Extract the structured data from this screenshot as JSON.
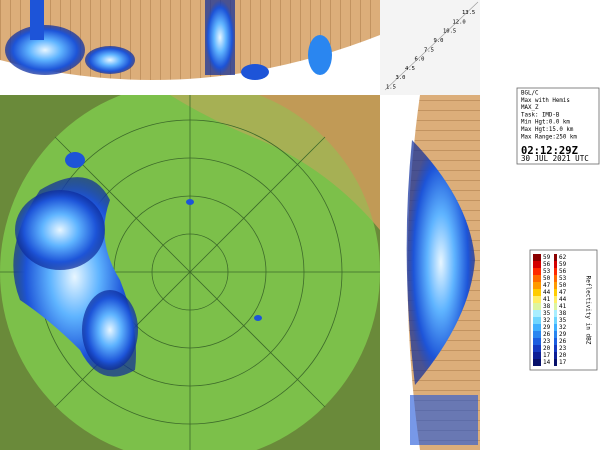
{
  "info": {
    "lines": [
      "BGL/C",
      "Max with Hemis",
      "MAX_Z",
      "Task: IMD-B",
      "Min Hgt:0.0 km",
      "Max Hgt:15.0 km",
      "Max Range:250 km"
    ],
    "time": "02:12:29Z",
    "date": "30 JUL 2021 UTC"
  },
  "height_scale": [
    "1.5",
    "3.0",
    "4.5",
    "6.0",
    "7.5",
    "9.0",
    "10.5",
    "12.0",
    "13.5"
  ],
  "legend": {
    "title": "Reflectivity in dBZ",
    "entries": [
      {
        "low": 59,
        "high": 62,
        "color": "#8b0000"
      },
      {
        "low": 56,
        "high": 59,
        "color": "#d40000"
      },
      {
        "low": 53,
        "high": 56,
        "color": "#ff2a00"
      },
      {
        "low": 50,
        "high": 53,
        "color": "#ff6a00"
      },
      {
        "low": 47,
        "high": 50,
        "color": "#ff9a00"
      },
      {
        "low": 44,
        "high": 47,
        "color": "#ffcc00"
      },
      {
        "low": 41,
        "high": 44,
        "color": "#ffee66"
      },
      {
        "low": 38,
        "high": 41,
        "color": "#ddf5a0"
      },
      {
        "low": 35,
        "high": 38,
        "color": "#a8eeff"
      },
      {
        "low": 32,
        "high": 35,
        "color": "#6fd6ff"
      },
      {
        "low": 29,
        "high": 32,
        "color": "#3fb0ff"
      },
      {
        "low": 26,
        "high": 29,
        "color": "#2a86f0"
      },
      {
        "low": 23,
        "high": 26,
        "color": "#1c5ee0"
      },
      {
        "low": 20,
        "high": 23,
        "color": "#1439c0"
      },
      {
        "low": 17,
        "high": 20,
        "color": "#0c1e96"
      },
      {
        "low": 14,
        "high": 17,
        "color": "#06106a"
      }
    ]
  }
}
